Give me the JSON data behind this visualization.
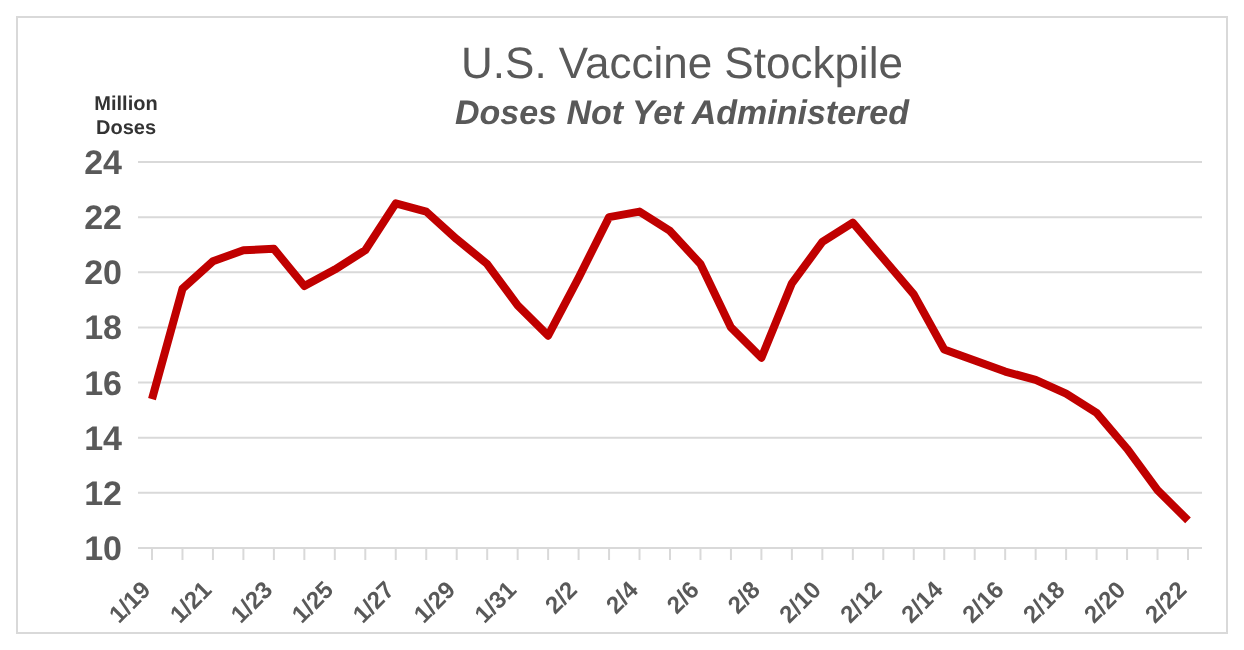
{
  "chart_data": {
    "type": "line",
    "title": "U.S. Vaccine Stockpile",
    "subtitle": "Doses Not Yet Administered",
    "ylabel": "Million Doses",
    "categories": [
      "1/19",
      null,
      "1/21",
      null,
      "1/23",
      null,
      "1/25",
      null,
      "1/27",
      null,
      "1/29",
      null,
      "1/31",
      null,
      "2/2",
      null,
      "2/4",
      null,
      "2/6",
      null,
      "2/8",
      null,
      "2/10",
      null,
      "2/12",
      null,
      "2/14",
      null,
      "2/16",
      null,
      "2/18",
      null,
      "2/20",
      null,
      "2/22"
    ],
    "series": [
      {
        "color": "#c00000",
        "values": [
          15.4,
          19.4,
          20.4,
          20.8,
          20.85,
          19.5,
          20.1,
          20.8,
          22.5,
          22.2,
          21.2,
          20.3,
          18.8,
          17.7,
          19.8,
          22.0,
          22.2,
          21.5,
          20.3,
          18.0,
          16.9,
          19.6,
          21.1,
          21.8,
          20.5,
          19.2,
          17.2,
          16.8,
          16.4,
          16.1,
          15.6,
          14.9,
          13.6,
          12.1,
          11.0
        ]
      }
    ],
    "ylim": [
      10,
      24
    ],
    "yticks": [
      10,
      12,
      14,
      16,
      18,
      20,
      22,
      24
    ],
    "grid": "y",
    "marker": "none",
    "line_style": "solid"
  }
}
